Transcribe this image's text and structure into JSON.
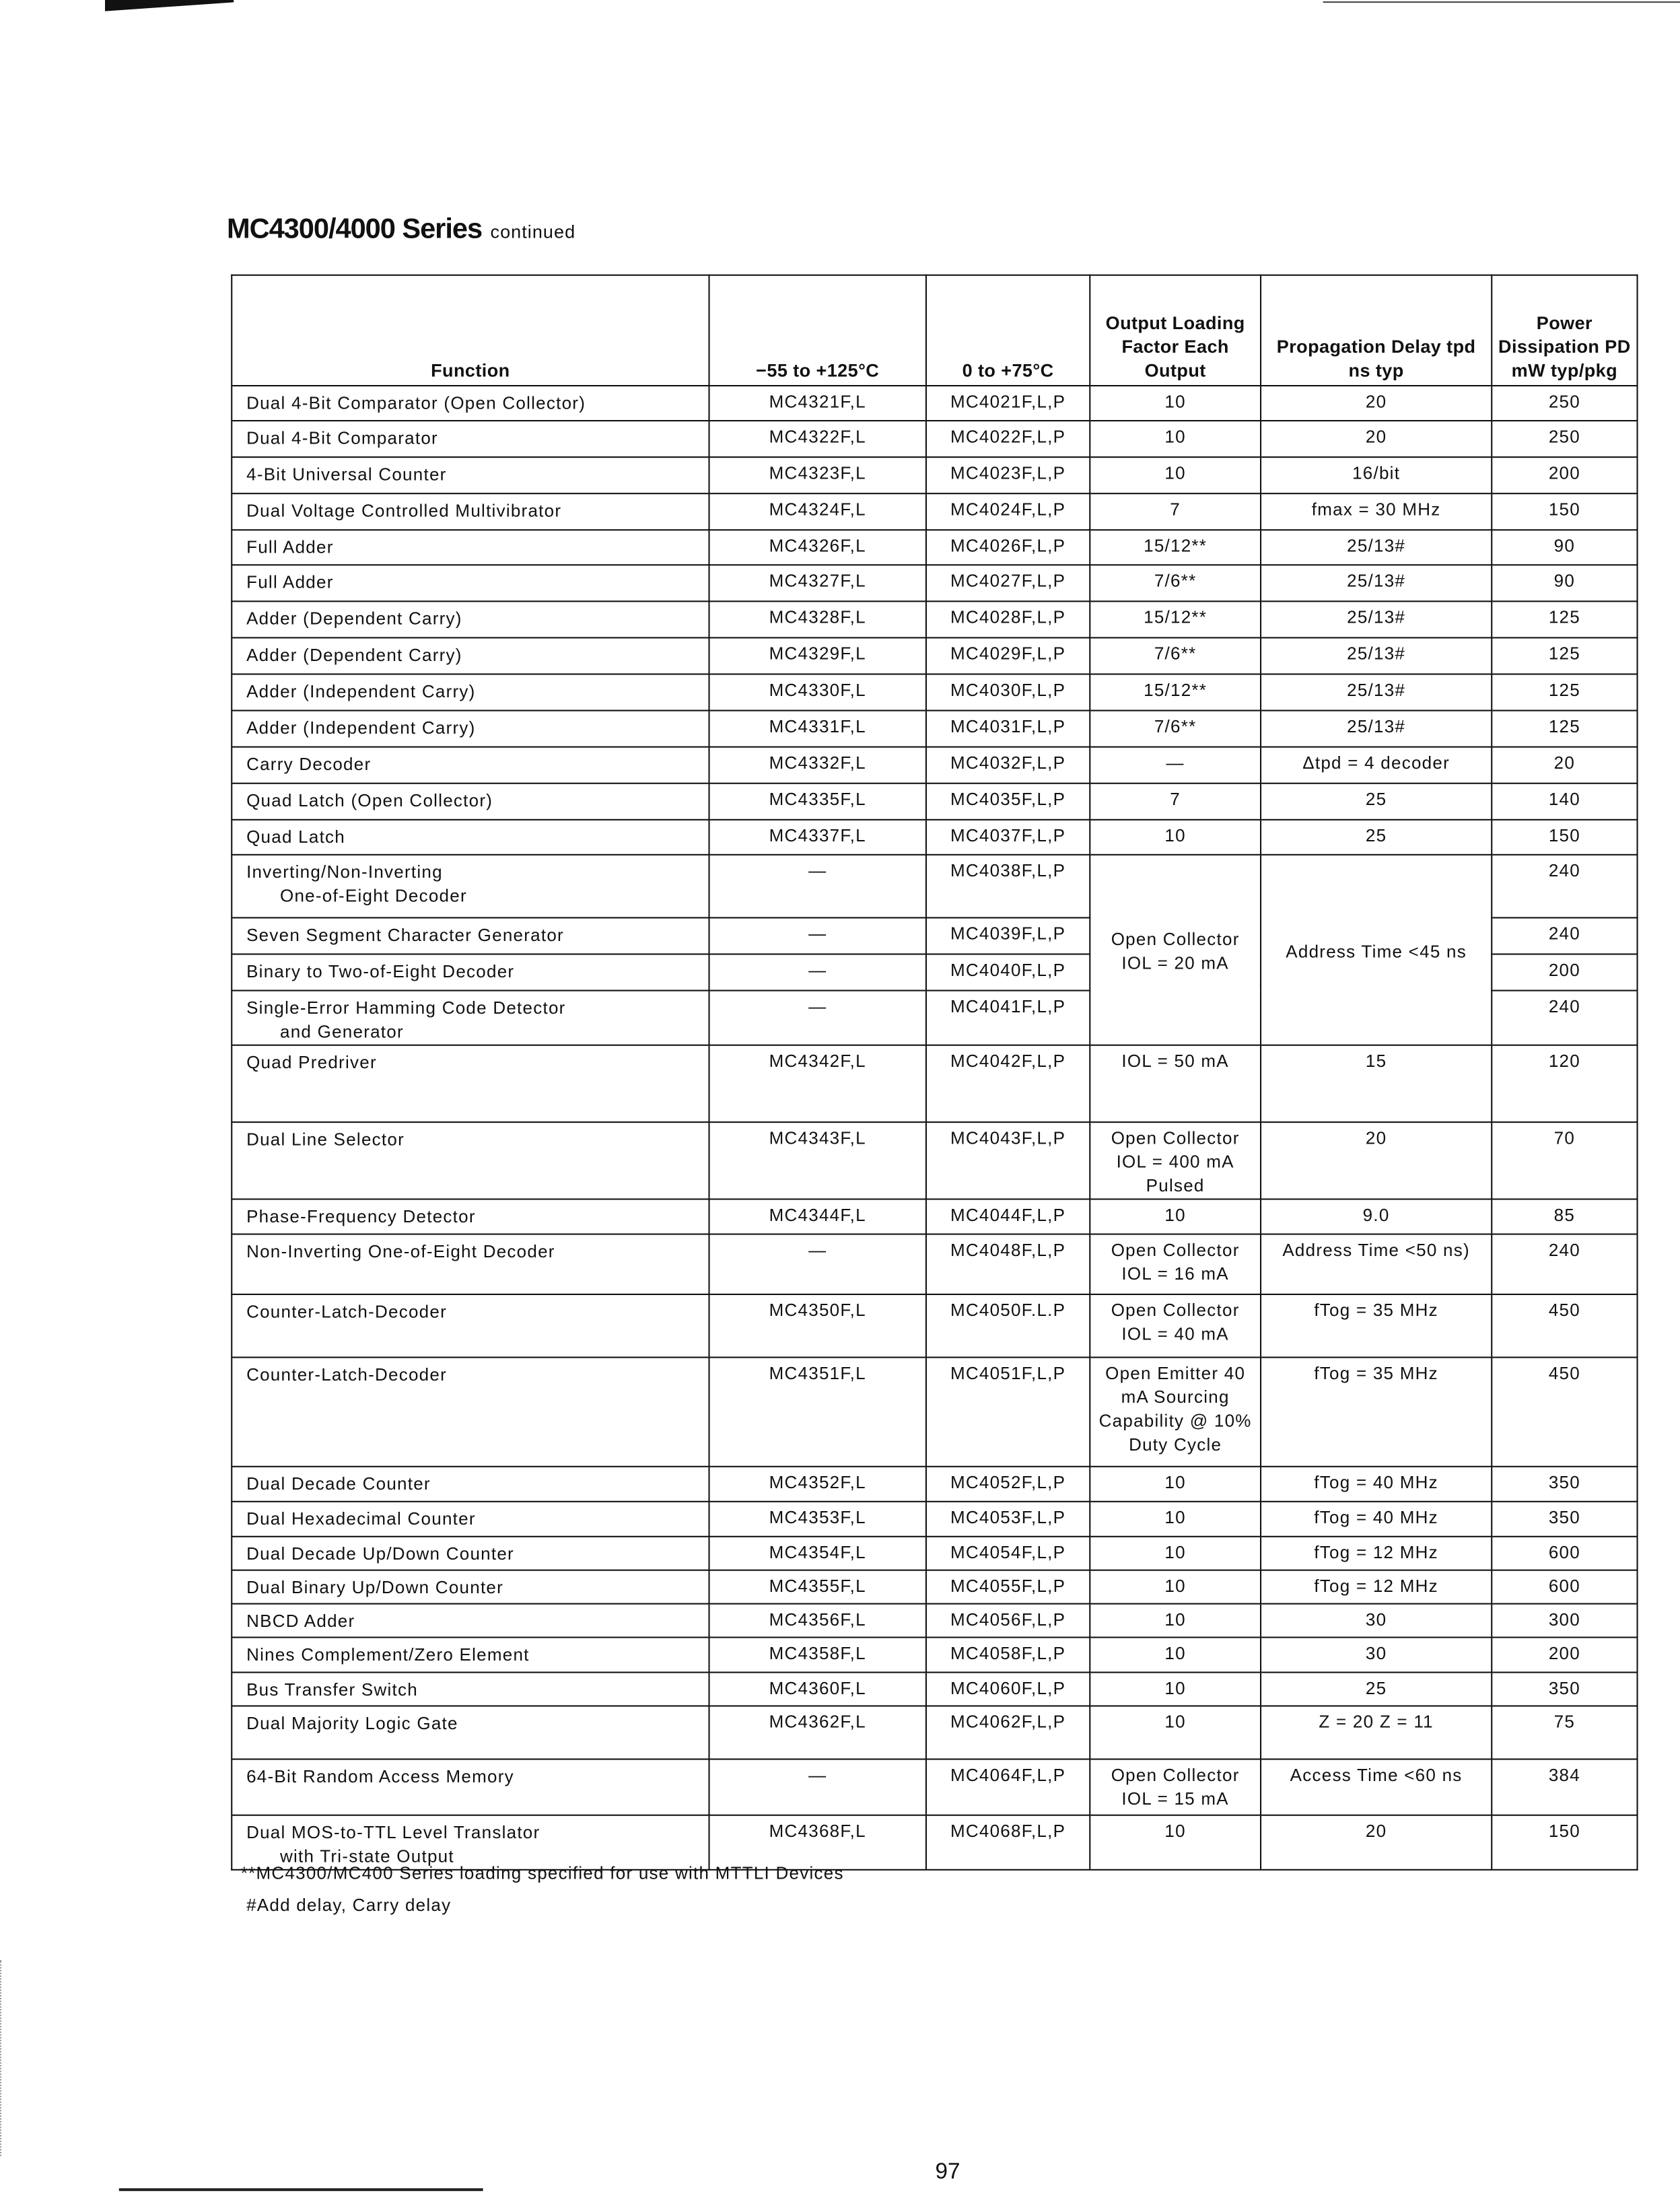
{
  "title": "MC4300/4000 Series",
  "title_suffix": "continued",
  "headers": [
    "Function",
    "−55 to +125°C",
    "0 to +75°C",
    "Output Loading Factor Each Output",
    "Propagation Delay tpd ns typ",
    "Power Dissipation PD mW typ/pkg"
  ],
  "rows": [
    {
      "function": "Dual 4-Bit Comparator (Open Collector)",
      "mil": "MC4321F,L",
      "com": "MC4021F,L,P",
      "load": "10",
      "tpd": "20",
      "pd": "250"
    },
    {
      "function": "Dual 4-Bit Comparator",
      "mil": "MC4322F,L",
      "com": "MC4022F,L,P",
      "load": "10",
      "tpd": "20",
      "pd": "250"
    },
    {
      "function": "4-Bit Universal Counter",
      "mil": "MC4323F,L",
      "com": "MC4023F,L,P",
      "load": "10",
      "tpd": "16/bit",
      "pd": "200"
    },
    {
      "function": "Dual Voltage Controlled Multivibrator",
      "mil": "MC4324F,L",
      "com": "MC4024F,L,P",
      "load": "7",
      "tpd": "fmax = 30 MHz",
      "pd": "150"
    },
    {
      "function": "Full Adder",
      "mil": "MC4326F,L",
      "com": "MC4026F,L,P",
      "load": "15/12**",
      "tpd": "25/13#",
      "pd": "90"
    },
    {
      "function": "Full Adder",
      "mil": "MC4327F,L",
      "com": "MC4027F,L,P",
      "load": "7/6**",
      "tpd": "25/13#",
      "pd": "90"
    },
    {
      "function": "Adder (Dependent Carry)",
      "mil": "MC4328F,L",
      "com": "MC4028F,L,P",
      "load": "15/12**",
      "tpd": "25/13#",
      "pd": "125"
    },
    {
      "function": "Adder (Dependent Carry)",
      "mil": "MC4329F,L",
      "com": "MC4029F,L,P",
      "load": "7/6**",
      "tpd": "25/13#",
      "pd": "125"
    },
    {
      "function": "Adder (Independent Carry)",
      "mil": "MC4330F,L",
      "com": "MC4030F,L,P",
      "load": "15/12**",
      "tpd": "25/13#",
      "pd": "125"
    },
    {
      "function": "Adder (Independent Carry)",
      "mil": "MC4331F,L",
      "com": "MC4031F,L,P",
      "load": "7/6**",
      "tpd": "25/13#",
      "pd": "125"
    },
    {
      "function": "Carry Decoder",
      "mil": "MC4332F,L",
      "com": "MC4032F,L,P",
      "load": "—",
      "tpd": "Δtpd = 4 decoder",
      "pd": "20"
    },
    {
      "function": "Quad Latch (Open Collector)",
      "mil": "MC4335F,L",
      "com": "MC4035F,L,P",
      "load": "7",
      "tpd": "25",
      "pd": "140"
    },
    {
      "function": "Quad Latch",
      "mil": "MC4337F,L",
      "com": "MC4037F,L,P",
      "load": "10",
      "tpd": "25",
      "pd": "150"
    },
    {
      "function": "Inverting/Non-Inverting",
      "function2": "One-of-Eight Decoder",
      "mil": "—",
      "com": "MC4038F,L,P",
      "load": "Open Collector IOL = 20 mA",
      "tpd": "Address Time <45 ns",
      "span": 4,
      "pd": "240"
    },
    {
      "function": "Seven Segment Character Generator",
      "mil": "—",
      "com": "MC4039F,L,P",
      "pd": "240"
    },
    {
      "function": "Binary to Two-of-Eight Decoder",
      "mil": "—",
      "com": "MC4040F,L,P",
      "pd": "200"
    },
    {
      "function": "Single-Error Hamming Code Detector",
      "function2": "and Generator",
      "mil": "—",
      "com": "MC4041F,L,P",
      "pd": "240"
    },
    {
      "function": "Quad Predriver",
      "mil": "MC4342F,L",
      "com": "MC4042F,L,P",
      "load": "IOL = 50 mA",
      "tpd": "15",
      "pd": "120"
    },
    {
      "function": "Dual Line Selector",
      "mil": "MC4343F,L",
      "com": "MC4043F,L,P",
      "load": "Open Collector IOL = 400 mA Pulsed",
      "tpd": "20",
      "pd": "70"
    },
    {
      "function": "Phase-Frequency Detector",
      "mil": "MC4344F,L",
      "com": "MC4044F,L,P",
      "load": "10",
      "tpd": "9.0",
      "pd": "85"
    },
    {
      "function": "Non-Inverting One-of-Eight Decoder",
      "mil": "—",
      "com": "MC4048F,L,P",
      "load": "Open Collector IOL = 16 mA",
      "tpd": "Address Time <50 ns)",
      "pd": "240"
    },
    {
      "function": "Counter-Latch-Decoder",
      "mil": "MC4350F,L",
      "com": "MC4050F.L.P",
      "load": "Open Collector IOL = 40 mA",
      "tpd": "fTog = 35 MHz",
      "pd": "450"
    },
    {
      "function": "Counter-Latch-Decoder",
      "mil": "MC4351F,L",
      "com": "MC4051F,L,P",
      "load": "Open Emitter 40 mA Sourcing Capability @ 10% Duty Cycle",
      "tpd": "fTog = 35 MHz",
      "pd": "450"
    },
    {
      "function": "Dual Decade Counter",
      "mil": "MC4352F,L",
      "com": "MC4052F,L,P",
      "load": "10",
      "tpd": "fTog = 40 MHz",
      "pd": "350"
    },
    {
      "function": "Dual Hexadecimal Counter",
      "mil": "MC4353F,L",
      "com": "MC4053F,L,P",
      "load": "10",
      "tpd": "fTog = 40 MHz",
      "pd": "350"
    },
    {
      "function": "Dual Decade Up/Down Counter",
      "mil": "MC4354F,L",
      "com": "MC4054F,L,P",
      "load": "10",
      "tpd": "fTog = 12 MHz",
      "pd": "600"
    },
    {
      "function": "Dual Binary Up/Down Counter",
      "mil": "MC4355F,L",
      "com": "MC4055F,L,P",
      "load": "10",
      "tpd": "fTog = 12 MHz",
      "pd": "600"
    },
    {
      "function": "NBCD Adder",
      "mil": "MC4356F,L",
      "com": "MC4056F,L,P",
      "load": "10",
      "tpd": "30",
      "pd": "300"
    },
    {
      "function": "Nines Complement/Zero Element",
      "mil": "MC4358F,L",
      "com": "MC4058F,L,P",
      "load": "10",
      "tpd": "30",
      "pd": "200"
    },
    {
      "function": "Bus Transfer Switch",
      "mil": "MC4360F,L",
      "com": "MC4060F,L,P",
      "load": "10",
      "tpd": "25",
      "pd": "350"
    },
    {
      "function": "Dual Majority Logic Gate",
      "mil": "MC4362F,L",
      "com": "MC4062F,L,P",
      "load": "10",
      "tpd": "Z = 20 Z = 11",
      "pd": "75"
    },
    {
      "function": "64-Bit Random Access Memory",
      "mil": "—",
      "com": "MC4064F,L,P",
      "load": "Open Collector IOL = 15 mA",
      "tpd": "Access Time <60 ns",
      "pd": "384"
    },
    {
      "function": "Dual MOS-to-TTL Level Translator",
      "function2": "with Tri-state Output",
      "mil": "MC4368F,L",
      "com": "MC4068F,L,P",
      "load": "10",
      "tpd": "20",
      "pd": "150"
    }
  ],
  "footnotes": [
    "**MC4300/MC400 Series loading specified for use with MTTLI Devices",
    "#Add delay, Carry delay"
  ],
  "page_number": "97"
}
